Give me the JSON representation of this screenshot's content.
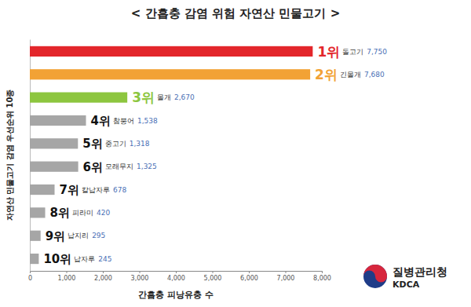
{
  "chart_data": {
    "type": "bar",
    "orientation": "horizontal",
    "title": "< 간흡충 감염 위험 자연산 민물고기 >",
    "x_label": "간흡충 피낭유충 수",
    "y_label": "자연산 민물고기 감염 우선순위 10종",
    "ranks": [
      "1위",
      "2위",
      "3위",
      "4위",
      "5위",
      "6위",
      "7위",
      "8위",
      "9위",
      "10위"
    ],
    "categories": [
      "돌고기",
      "긴몰개",
      "몰개",
      "참붕어",
      "중고기",
      "모래무지",
      "칼납자루",
      "피라미",
      "납지리",
      "납자루"
    ],
    "values": [
      7750,
      7680,
      2670,
      1538,
      1318,
      1325,
      678,
      420,
      295,
      245
    ],
    "value_labels": [
      "7,750",
      "7,680",
      "2,670",
      "1,538",
      "1,318",
      "1,325",
      "678",
      "420",
      "295",
      "245"
    ],
    "colors": [
      "#e3262b",
      "#f2a235",
      "#8dc63f",
      "#a6a6a6",
      "#a6a6a6",
      "#a6a6a6",
      "#a6a6a6",
      "#a6a6a6",
      "#a6a6a6",
      "#a6a6a6"
    ],
    "xlim": [
      0,
      8000
    ],
    "xticks": [
      0,
      {
        "value": 1000,
        "label": "1,000"
      },
      {
        "value": 2000,
        "label": "2,000"
      },
      {
        "value": 3000,
        "label": "3,000"
      },
      {
        "value": 4000,
        "label": "4,000"
      },
      {
        "value": 5000,
        "label": "5,000"
      },
      {
        "value": 6000,
        "label": "6,000"
      },
      {
        "value": 7000,
        "label": "7,000"
      },
      {
        "value": 8000,
        "label": "8,000"
      }
    ],
    "data_labels": true,
    "grid": false,
    "tick_labels": "x",
    "source": "질병관리청",
    "source_en": "KDCA"
  }
}
